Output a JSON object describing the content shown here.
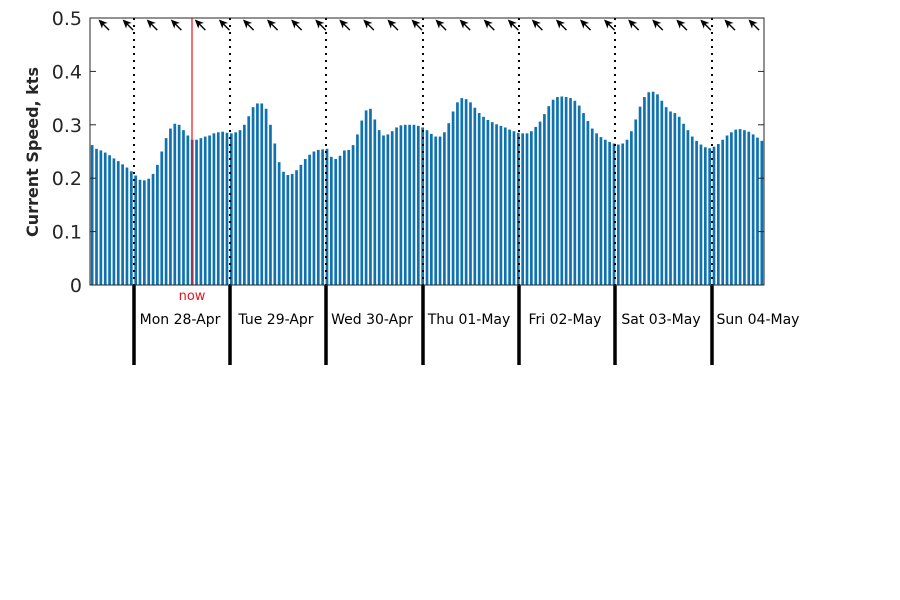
{
  "chart_data": {
    "type": "bar",
    "title": "",
    "xlabel": "",
    "ylabel": "Current Speed, kts",
    "ylim": [
      0,
      0.5
    ],
    "yticks": [
      "0",
      "0.1",
      "0.2",
      "0.3",
      "0.4",
      "0.5"
    ],
    "grid": false,
    "bar_color": "#0f72b0",
    "day_labels": [
      "Mon 28-Apr",
      "Tue 29-Apr",
      "Wed 30-Apr",
      "Thu 01-May",
      "Fri 02-May",
      "Sat 03-May",
      "Sun 04-May"
    ],
    "now_label": "now",
    "now_color": "#e8141b",
    "direction_arrow_icon": "current-direction-arrow-icon",
    "direction_arrow_count": 28,
    "series": [
      {
        "values": [
          0.262,
          0.255,
          0.252,
          0.248,
          0.243,
          0.237,
          0.232,
          0.226,
          0.22,
          0.213,
          0.205,
          0.197,
          0.196,
          0.199,
          0.208,
          0.225,
          0.25,
          0.275,
          0.293,
          0.302,
          0.3,
          0.29,
          0.28,
          0.272,
          0.272,
          0.275,
          0.278,
          0.28,
          0.284,
          0.286,
          0.287,
          0.285,
          0.284,
          0.286,
          0.29,
          0.3,
          0.316,
          0.333,
          0.34,
          0.34,
          0.33,
          0.3,
          0.265,
          0.23,
          0.212,
          0.206,
          0.208,
          0.215,
          0.225,
          0.236,
          0.244,
          0.25,
          0.253,
          0.254,
          0.255,
          0.24,
          0.236,
          0.242,
          0.252,
          0.253,
          0.262,
          0.282,
          0.308,
          0.327,
          0.33,
          0.31,
          0.29,
          0.28,
          0.282,
          0.288,
          0.295,
          0.299,
          0.3,
          0.3,
          0.3,
          0.298,
          0.295,
          0.29,
          0.283,
          0.278,
          0.278,
          0.286,
          0.303,
          0.325,
          0.342,
          0.35,
          0.348,
          0.342,
          0.332,
          0.322,
          0.315,
          0.309,
          0.305,
          0.301,
          0.298,
          0.295,
          0.291,
          0.288,
          0.285,
          0.284,
          0.284,
          0.288,
          0.296,
          0.306,
          0.32,
          0.335,
          0.347,
          0.352,
          0.353,
          0.352,
          0.35,
          0.345,
          0.336,
          0.322,
          0.307,
          0.293,
          0.284,
          0.277,
          0.272,
          0.268,
          0.265,
          0.263,
          0.265,
          0.272,
          0.288,
          0.31,
          0.334,
          0.352,
          0.361,
          0.362,
          0.357,
          0.345,
          0.333,
          0.325,
          0.322,
          0.315,
          0.302,
          0.29,
          0.278,
          0.27,
          0.263,
          0.258,
          0.256,
          0.259,
          0.264,
          0.272,
          0.28,
          0.286,
          0.291,
          0.292,
          0.29,
          0.287,
          0.282,
          0.276,
          0.27
        ]
      }
    ]
  }
}
